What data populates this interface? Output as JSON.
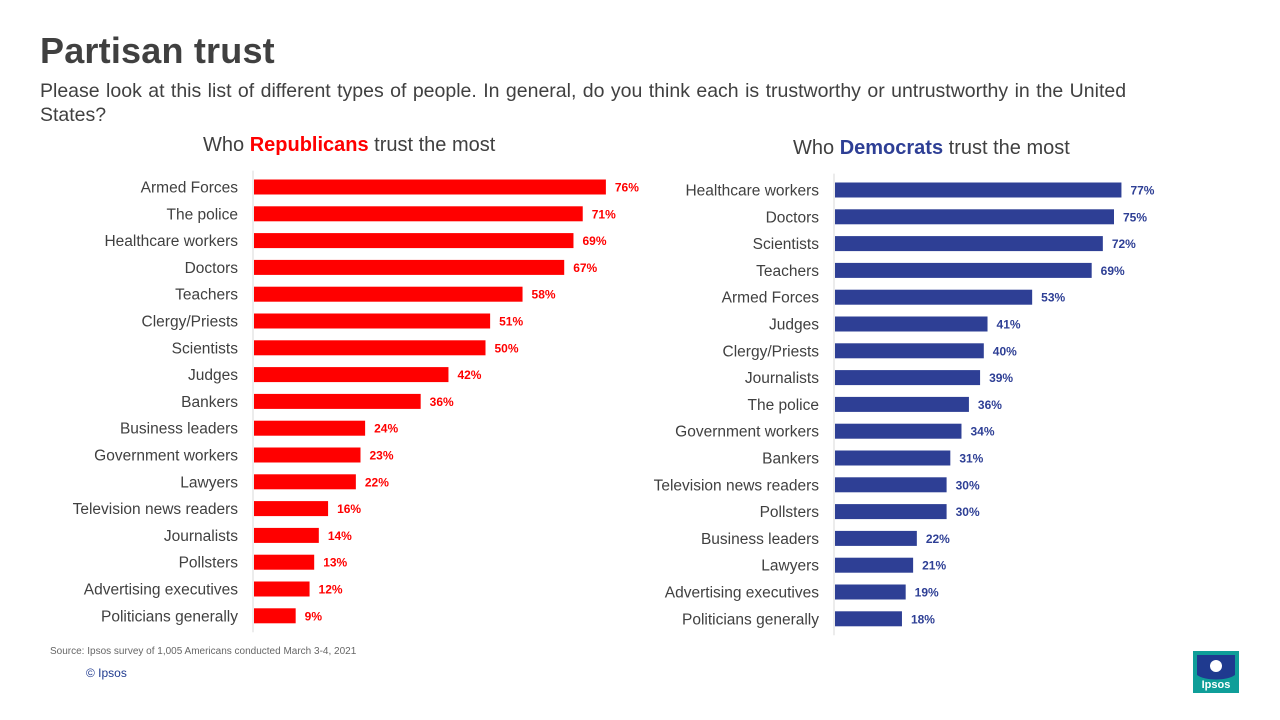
{
  "title": "Partisan trust",
  "subtitle": "Please look at this list of different types of people. In general, do you think each is trustworthy or untrustworthy in the United States?",
  "colors": {
    "republican": "#ff0000",
    "democrat": "#2e3f95",
    "text": "#404040",
    "axis": "#d9d9d9"
  },
  "chart_data": [
    {
      "type": "bar",
      "orientation": "horizontal",
      "title_prefix": "Who ",
      "title_highlight": "Republicans",
      "title_suffix": " trust the most",
      "color": "#ff0000",
      "xlim": [
        0,
        100
      ],
      "value_suffix": "%",
      "categories": [
        "Armed Forces",
        "The police",
        "Healthcare workers",
        "Doctors",
        "Teachers",
        "Clergy/Priests",
        "Scientists",
        "Judges",
        "Bankers",
        "Business leaders",
        "Government workers",
        "Lawyers",
        "Television news readers",
        "Journalists",
        "Pollsters",
        "Advertising executives",
        "Politicians generally"
      ],
      "values": [
        76,
        71,
        69,
        67,
        58,
        51,
        50,
        42,
        36,
        24,
        23,
        22,
        16,
        14,
        13,
        12,
        9
      ]
    },
    {
      "type": "bar",
      "orientation": "horizontal",
      "title_prefix": "Who ",
      "title_highlight": "Democrats",
      "title_suffix": " trust the most",
      "color": "#2e3f95",
      "xlim": [
        0,
        100
      ],
      "value_suffix": "%",
      "categories": [
        "Healthcare workers",
        "Doctors",
        "Scientists",
        "Teachers",
        "Armed Forces",
        "Judges",
        "Clergy/Priests",
        "Journalists",
        "The police",
        "Government workers",
        "Bankers",
        "Television news readers",
        "Pollsters",
        "Business leaders",
        "Lawyers",
        "Advertising executives",
        "Politicians generally"
      ],
      "values": [
        77,
        75,
        72,
        69,
        53,
        41,
        40,
        39,
        36,
        34,
        31,
        30,
        30,
        22,
        21,
        19,
        18
      ]
    }
  ],
  "footer": {
    "source": "Source: Ipsos survey of 1,005 Americans conducted March 3-4, 2021",
    "copyright": "© Ipsos",
    "logo_text": "Ipsos"
  }
}
